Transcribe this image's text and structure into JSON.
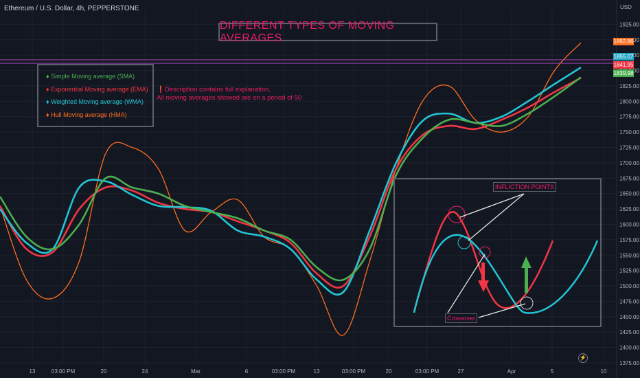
{
  "header": {
    "symbol": "Ethereum / U.S. Dollar, 4h, PEPPERSTONE"
  },
  "title": "DIFFERENT TYPES OF MOVING AVERAGES",
  "legend": [
    {
      "label": "Simple Moving average (SMA)",
      "color": "#4caf50"
    },
    {
      "label": "Exponential Moving average (EMA)",
      "color": "#f23645"
    },
    {
      "label": "Weighted Moving average (WMA)",
      "color": "#22c5d4"
    },
    {
      "label": "Hull Moving average (HMA)",
      "color": "#ff6d1f"
    }
  ],
  "note": {
    "line1": "❗Description contains full explanation,",
    "line2": "All moving averages showed are on a period of 50"
  },
  "annotations": {
    "inflection": "INFLICTION POINTS",
    "crossover": "Crossover"
  },
  "price_tags": [
    {
      "value": "1892.86",
      "color": "#ff6d1f"
    },
    {
      "value": "1855.07",
      "color": "#22a8c4"
    },
    {
      "value": "1841.95",
      "color": "#f23645"
    },
    {
      "value": "1839.98",
      "color": "#4caf50"
    }
  ],
  "chart_data": {
    "type": "line",
    "currency": "USD",
    "ylim": [
      1375,
      1950
    ],
    "y_ticks": [
      1375,
      1400,
      1425,
      1450,
      1475,
      1500,
      1525,
      1550,
      1575,
      1600,
      1625,
      1650,
      1675,
      1700,
      1725,
      1750,
      1775,
      1800,
      1825,
      1850,
      1875,
      1900,
      1925
    ],
    "x_ticks": [
      "13",
      "03:00 PM",
      "20",
      "24",
      "Mar",
      "6",
      "03:00 PM",
      "13",
      "03:00 PM",
      "20",
      "03:00 PM",
      "27",
      "Apr",
      "5",
      "10"
    ],
    "series": [
      {
        "name": "Hull Moving average (HMA)",
        "color": "#ff6d1f",
        "values": [
          1630,
          1510,
          1480,
          1540,
          1715,
          1725,
          1690,
          1590,
          1620,
          1640,
          1580,
          1560,
          1500,
          1420,
          1540,
          1690,
          1800,
          1825,
          1770,
          1750,
          1775,
          1850,
          1895
        ]
      },
      {
        "name": "Exponential Moving average (EMA)",
        "color": "#f23645",
        "values": [
          1630,
          1560,
          1555,
          1625,
          1660,
          1655,
          1635,
          1625,
          1620,
          1605,
          1590,
          1570,
          1520,
          1500,
          1580,
          1690,
          1745,
          1760,
          1755,
          1770,
          1790,
          1815,
          1838
        ]
      },
      {
        "name": "Weighted Moving average (WMA)",
        "color": "#22c5d4",
        "values": [
          1625,
          1570,
          1560,
          1660,
          1670,
          1648,
          1630,
          1628,
          1622,
          1590,
          1580,
          1560,
          1510,
          1490,
          1590,
          1700,
          1768,
          1780,
          1765,
          1775,
          1800,
          1828,
          1855
        ]
      },
      {
        "name": "Simple Moving average (SMA)",
        "color": "#4caf50",
        "values": [
          1645,
          1580,
          1560,
          1600,
          1675,
          1660,
          1650,
          1630,
          1620,
          1610,
          1590,
          1575,
          1530,
          1510,
          1560,
          1680,
          1740,
          1770,
          1765,
          1760,
          1780,
          1808,
          1839
        ]
      }
    ]
  }
}
